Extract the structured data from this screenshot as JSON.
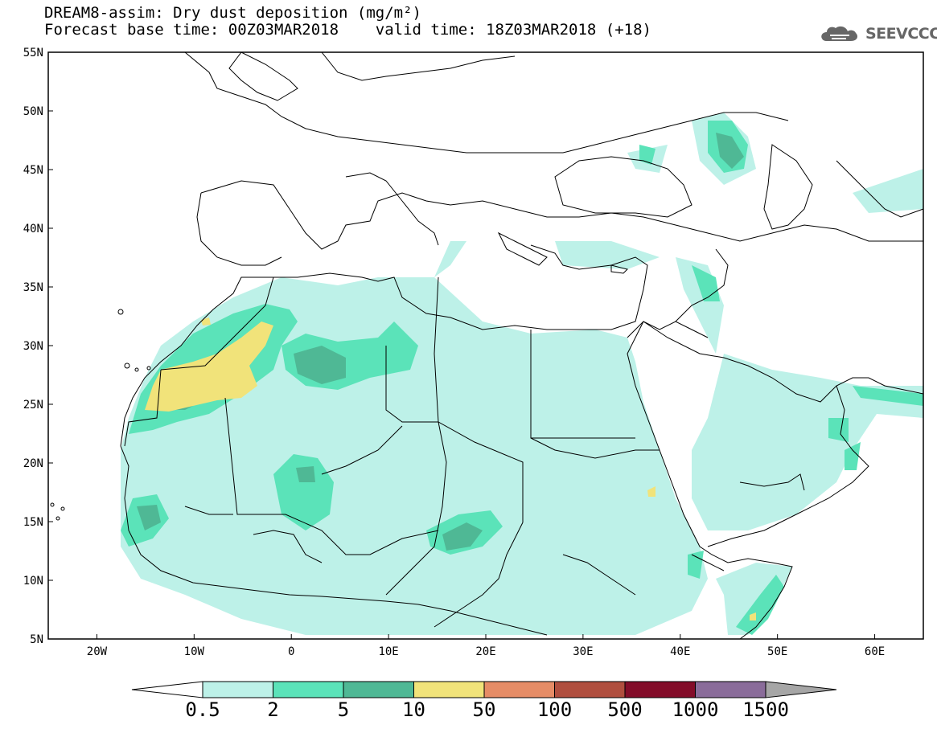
{
  "title": {
    "line1": "DREAM8-assim: Dry dust deposition (mg/m²)",
    "line2": "Forecast base time: 00Z03MAR2018    valid time: 18Z03MAR2018 (+18)"
  },
  "logo": {
    "text": "SEEVCCC",
    "icon": "cloud-icon"
  },
  "map": {
    "lat_range": [
      5,
      55
    ],
    "lon_range": [
      -25,
      65
    ],
    "lat_ticks": [
      {
        "value": 55,
        "label": "55N"
      },
      {
        "value": 50,
        "label": "50N"
      },
      {
        "value": 45,
        "label": "45N"
      },
      {
        "value": 40,
        "label": "40N"
      },
      {
        "value": 35,
        "label": "35N"
      },
      {
        "value": 30,
        "label": "30N"
      },
      {
        "value": 25,
        "label": "25N"
      },
      {
        "value": 20,
        "label": "20N"
      },
      {
        "value": 15,
        "label": "15N"
      },
      {
        "value": 10,
        "label": "10N"
      },
      {
        "value": 5,
        "label": "5N"
      }
    ],
    "lon_ticks": [
      {
        "value": -20,
        "label": "20W"
      },
      {
        "value": -10,
        "label": "10W"
      },
      {
        "value": 0,
        "label": "0"
      },
      {
        "value": 10,
        "label": "10E"
      },
      {
        "value": 20,
        "label": "20E"
      },
      {
        "value": 30,
        "label": "30E"
      },
      {
        "value": 40,
        "label": "40E"
      },
      {
        "value": 50,
        "label": "50E"
      },
      {
        "value": 60,
        "label": "60E"
      }
    ]
  },
  "colorbar": {
    "colors": [
      "#bdf1e8",
      "#5be3b9",
      "#4fb895",
      "#f1e37a",
      "#e68c66",
      "#b04e3e",
      "#830c29",
      "#8a6c9a"
    ],
    "end_low_color": "#ffffff",
    "end_high_color": "#a6a6a6",
    "labels": [
      "0.5",
      "2",
      "5",
      "10",
      "50",
      "100",
      "500",
      "1000",
      "1500"
    ]
  }
}
